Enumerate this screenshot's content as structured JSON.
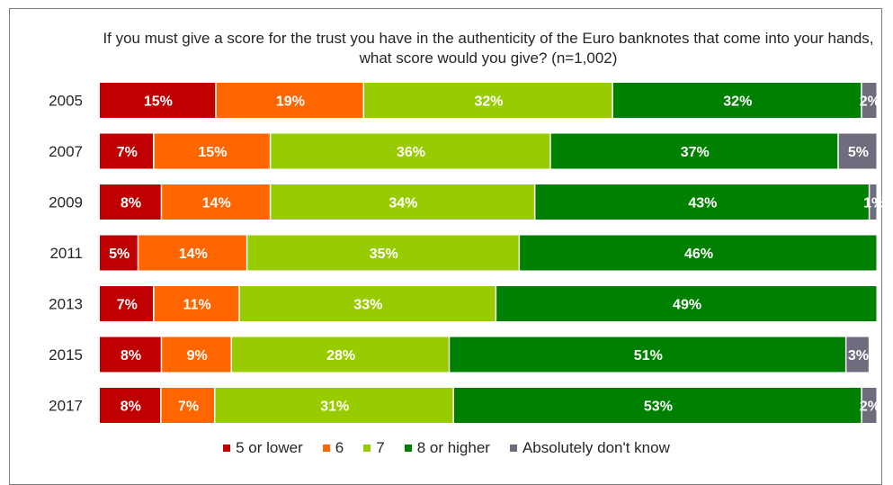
{
  "chart_data": {
    "type": "bar",
    "orientation": "horizontal",
    "stacked": true,
    "title": "If you must give a score for the trust you have in the authenticity of the Euro banknotes that come into your hands, what score would you give? (n=1,002)",
    "categories": [
      "2005",
      "2007",
      "2009",
      "2011",
      "2013",
      "2015",
      "2017"
    ],
    "series": [
      {
        "name": "5 or lower",
        "color": "#c00000",
        "values": [
          15,
          7,
          8,
          5,
          7,
          8,
          8
        ],
        "labels": [
          "15%",
          "7%",
          "8%",
          "5%",
          "7%",
          "8%",
          "8%"
        ]
      },
      {
        "name": "6",
        "color": "#ff6600",
        "values": [
          19,
          15,
          14,
          14,
          11,
          9,
          7
        ],
        "labels": [
          "19%",
          "15%",
          "14%",
          "14%",
          "11%",
          "9%",
          "7%"
        ]
      },
      {
        "name": "7",
        "color": "#99cc00",
        "values": [
          32,
          36,
          34,
          35,
          33,
          28,
          31
        ],
        "labels": [
          "32%",
          "36%",
          "34%",
          "35%",
          "33%",
          "28%",
          "31%"
        ]
      },
      {
        "name": "8 or higher",
        "color": "#008000",
        "values": [
          32,
          37,
          43,
          46,
          49,
          51,
          53
        ],
        "labels": [
          "32%",
          "37%",
          "43%",
          "46%",
          "49%",
          "51%",
          "53%"
        ]
      },
      {
        "name": "Absolutely don't know",
        "color": "#6d6d7d",
        "values": [
          2,
          5,
          1,
          0,
          0,
          3,
          2
        ],
        "labels": [
          "2%",
          "5%",
          "1%",
          "",
          "",
          "3%",
          "2%"
        ]
      }
    ],
    "xlim": [
      0,
      100
    ],
    "legend_position": "bottom",
    "grid": false
  }
}
